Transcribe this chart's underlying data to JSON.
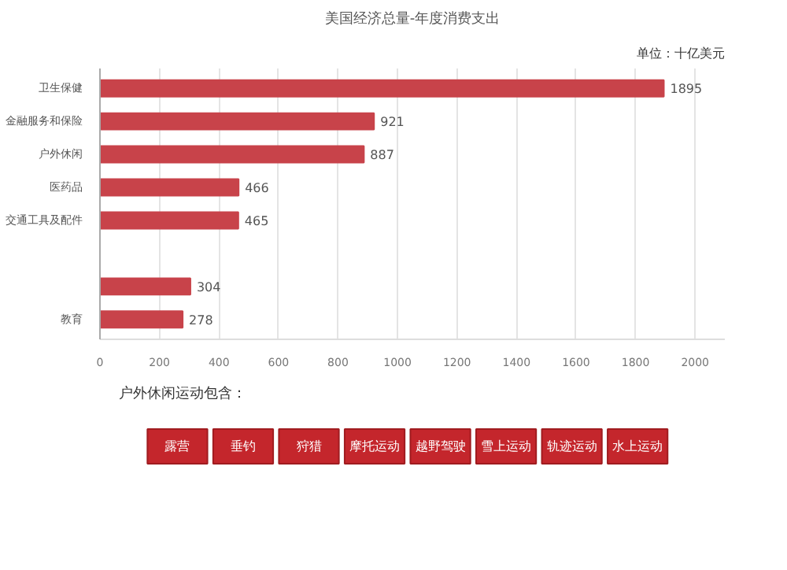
{
  "chart_data": {
    "type": "bar",
    "orientation": "horizontal",
    "title": "美国经济总量-年度消费支出",
    "subtitle": "单位：十亿美元",
    "categories": [
      "卫生保健",
      "金融服务和保险",
      "户外休闲",
      "医药品",
      "交通工具及配件",
      null,
      null,
      "教育"
    ],
    "values": [
      1895,
      921,
      887,
      466,
      465,
      null,
      304,
      278
    ],
    "color": "#c8434a",
    "data_labels": true,
    "xlim": [
      0,
      2100
    ],
    "xticks": [
      0,
      200,
      400,
      600,
      800,
      1000,
      1200,
      1400,
      1600,
      1800,
      2000
    ],
    "grid": "x",
    "annotations": [
      "户外休闲运动包含：",
      "露营",
      "垂钓",
      "狩猎",
      "摩托运动",
      "越野驾驶",
      "雪上运动",
      "轨迹运动",
      "水上运动"
    ]
  }
}
